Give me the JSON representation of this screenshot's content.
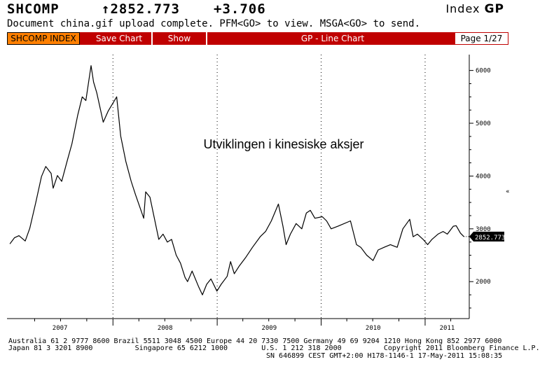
{
  "header": {
    "ticker": "SHCOMP",
    "price": "↑2852.773",
    "change": "+3.706",
    "security_type": "Index",
    "function_code": "GP"
  },
  "message": "Document china.gif upload complete. PFM<GO> to view. MSGA<GO> to send.",
  "toolbar": {
    "index_button": "SHCOMP INDEX",
    "save_chart": "Save Chart",
    "show": "Show",
    "chart_name": "GP - Line Chart",
    "page": "Page 1/27"
  },
  "chart_data": {
    "type": "line",
    "title": "Utviklingen i kinesiske aksjer",
    "y_ticks": [
      2000,
      3000,
      4000,
      5000,
      6000
    ],
    "ylim": [
      1300,
      6300
    ],
    "x_labels": [
      "2007",
      "2008",
      "2009",
      "2010",
      "2011"
    ],
    "last_value_label": "2852.773",
    "last_value": 2852.773,
    "grid": "vertical dotted",
    "line_color": "#000000",
    "series": [
      {
        "x": [
          "2007-01-04",
          "2007-01-20",
          "2007-02-05",
          "2007-02-27",
          "2007-03-15",
          "2007-04-05",
          "2007-04-25",
          "2007-05-10",
          "2007-05-29",
          "2007-06-05",
          "2007-06-20",
          "2007-07-05",
          "2007-07-25",
          "2007-08-10",
          "2007-08-30",
          "2007-09-15",
          "2007-09-28",
          "2007-10-16",
          "2007-10-25",
          "2007-11-05",
          "2007-11-28",
          "2007-12-15",
          "2008-01-14",
          "2008-01-28",
          "2008-02-15",
          "2008-03-05",
          "2008-03-20",
          "2008-04-18",
          "2008-04-25",
          "2008-05-10",
          "2008-06-10",
          "2008-06-25",
          "2008-07-10",
          "2008-07-25",
          "2008-08-10",
          "2008-08-25",
          "2008-09-10",
          "2008-09-19",
          "2008-10-05",
          "2008-10-28",
          "2008-11-10",
          "2008-11-25",
          "2008-12-10",
          "2008-12-31",
          "2009-01-15",
          "2009-02-05",
          "2009-02-17",
          "2009-03-02",
          "2009-03-20",
          "2009-04-10",
          "2009-05-05",
          "2009-06-01",
          "2009-06-20",
          "2009-07-10",
          "2009-08-04",
          "2009-08-20",
          "2009-08-31",
          "2009-09-15",
          "2009-10-05",
          "2009-10-25",
          "2009-11-10",
          "2009-11-24",
          "2009-12-10",
          "2010-01-05",
          "2010-01-20",
          "2010-02-05",
          "2010-03-01",
          "2010-04-14",
          "2010-05-05",
          "2010-05-20",
          "2010-06-10",
          "2010-07-02",
          "2010-07-20",
          "2010-08-10",
          "2010-09-01",
          "2010-09-25",
          "2010-10-15",
          "2010-11-08",
          "2010-11-20",
          "2010-12-05",
          "2010-12-25",
          "2011-01-10",
          "2011-01-25",
          "2011-02-15",
          "2011-03-05",
          "2011-03-20",
          "2011-04-10",
          "2011-04-20",
          "2011-05-05",
          "2011-05-17"
        ],
        "y": [
          2715,
          2830,
          2870,
          2770,
          3010,
          3500,
          3990,
          4180,
          4050,
          3770,
          4010,
          3900,
          4300,
          4610,
          5150,
          5500,
          5430,
          6092,
          5780,
          5580,
          5020,
          5230,
          5500,
          4760,
          4280,
          3900,
          3650,
          3200,
          3700,
          3600,
          2800,
          2900,
          2750,
          2800,
          2500,
          2350,
          2080,
          2000,
          2200,
          1900,
          1750,
          1950,
          2050,
          1820,
          1950,
          2100,
          2380,
          2150,
          2300,
          2450,
          2650,
          2850,
          2950,
          3150,
          3470,
          3050,
          2700,
          2900,
          3100,
          3000,
          3300,
          3350,
          3200,
          3230,
          3150,
          3000,
          3050,
          3150,
          2700,
          2650,
          2500,
          2400,
          2600,
          2650,
          2700,
          2650,
          3000,
          3180,
          2850,
          2900,
          2800,
          2700,
          2800,
          2900,
          2950,
          2900,
          3050,
          3060,
          2920,
          2853
        ]
      }
    ]
  },
  "footer": {
    "line1": "Australia 61 2 9777 8600 Brazil 5511 3048 4500 Europe 44 20 7330 7500 Germany 49 69 9204 1210 Hong Kong 852 2977 6000",
    "line2": "Japan 81 3 3201 8900          Singapore 65 6212 1000        U.S. 1 212 318 2000          Copyright 2011 Bloomberg Finance L.P.",
    "line3": "SN 646899 CEST GMT+2:00 H178-1146-1 17-May-2011 15:08:35"
  }
}
